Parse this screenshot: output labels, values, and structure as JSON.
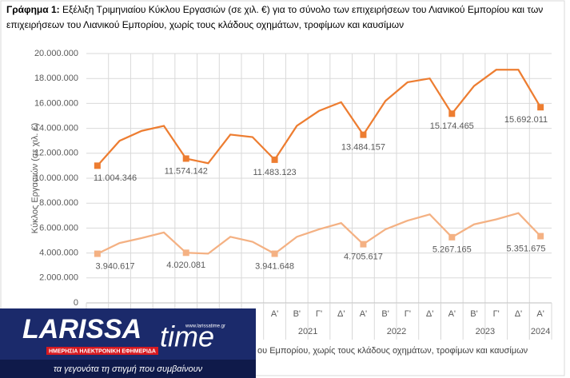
{
  "chart_data": {
    "type": "line",
    "title_prefix": "Γράφημα 1:",
    "title": "Εξέλιξη Τριμηνιαίου Κύκλου Εργασιών (σε χιλ. €) για το σύνολο των επιχειρήσεων του Λιανικού Εμπορίου και των",
    "title_line2": "επιχειρήσεων του Λιανικού Εμπορίου, χωρίς τους κλάδους οχημάτων, τροφίμων και καυσίμων",
    "y_label": "Κύκλος Εργασιών (σε χιλ. €)",
    "categories": [
      null,
      null,
      null,
      null,
      null,
      null,
      null,
      null,
      "Α'",
      "Β'",
      "Γ'",
      "Δ'",
      "Α'",
      "Β'",
      "Γ'",
      "Δ'",
      "Α'",
      "Β'",
      "Γ'",
      "Δ'",
      "Α'"
    ],
    "category_groups": [
      "2021",
      "2022",
      "2023",
      "2024"
    ],
    "series": [
      {
        "color": "#ED7D31",
        "values": [
          11004346,
          13000000,
          13800000,
          14200000,
          11574142,
          11200000,
          13500000,
          13300000,
          11483123,
          14200000,
          15400000,
          16100000,
          13484157,
          16200000,
          17700000,
          18000000,
          15174465,
          17400000,
          18700000,
          18700000,
          15692011
        ],
        "value_labels": [
          "11.004.346",
          null,
          null,
          null,
          "11.574.142",
          null,
          null,
          null,
          "11.483.123",
          null,
          null,
          null,
          "13.484.157",
          null,
          null,
          null,
          "15.174.465",
          null,
          null,
          null,
          "15.692.011"
        ]
      },
      {
        "color": "#F4B183",
        "values": [
          3940617,
          4800000,
          5200000,
          5650000,
          4020081,
          3950000,
          5300000,
          4900000,
          3941648,
          5300000,
          5900000,
          6400000,
          4705617,
          5900000,
          6600000,
          7100000,
          5267165,
          6300000,
          6700000,
          7200000,
          5351675
        ],
        "value_labels": [
          "3.940.617",
          null,
          null,
          null,
          "4.020.081",
          null,
          null,
          null,
          "3.941.648",
          null,
          null,
          null,
          "4.705.617",
          null,
          null,
          null,
          "5.267.165",
          null,
          null,
          null,
          "5.351.675"
        ]
      }
    ],
    "ylim": [
      0,
      20000000
    ],
    "yticks": [
      0,
      {
        "value": 2000000,
        "label": "2.000.000"
      },
      {
        "value": 4000000,
        "label": "4.000.000"
      },
      {
        "value": 6000000,
        "label": "6.000.000"
      },
      {
        "value": 8000000,
        "label": "8.000.000"
      },
      {
        "value": 10000000,
        "label": "10.000.000"
      },
      {
        "value": 12000000,
        "label": "12.000.000"
      },
      {
        "value": 14000000,
        "label": "14.000.000"
      },
      {
        "value": 16000000,
        "label": "16.000.000"
      },
      {
        "value": 18000000,
        "label": "18.000.000"
      },
      {
        "value": 20000000,
        "label": "20.000.000"
      }
    ],
    "grid": true,
    "legend_text": "ου Εμπορίου, χωρίς τους κλάδους οχημάτων, τροφίμων και καυσίμων"
  },
  "watermark": {
    "brand_left": "LARISSA",
    "brand_right": "time",
    "url": "www.larissatime.gr",
    "subtitle": "ΗΜΕΡΗΣΙΑ ΗΛΕΚΤΡΟΝΙΚΗ ΕΦΗΜΕΡΙΔΑ",
    "slogan": "τα γεγονότα τη στιγμή που συμβαίνουν"
  }
}
